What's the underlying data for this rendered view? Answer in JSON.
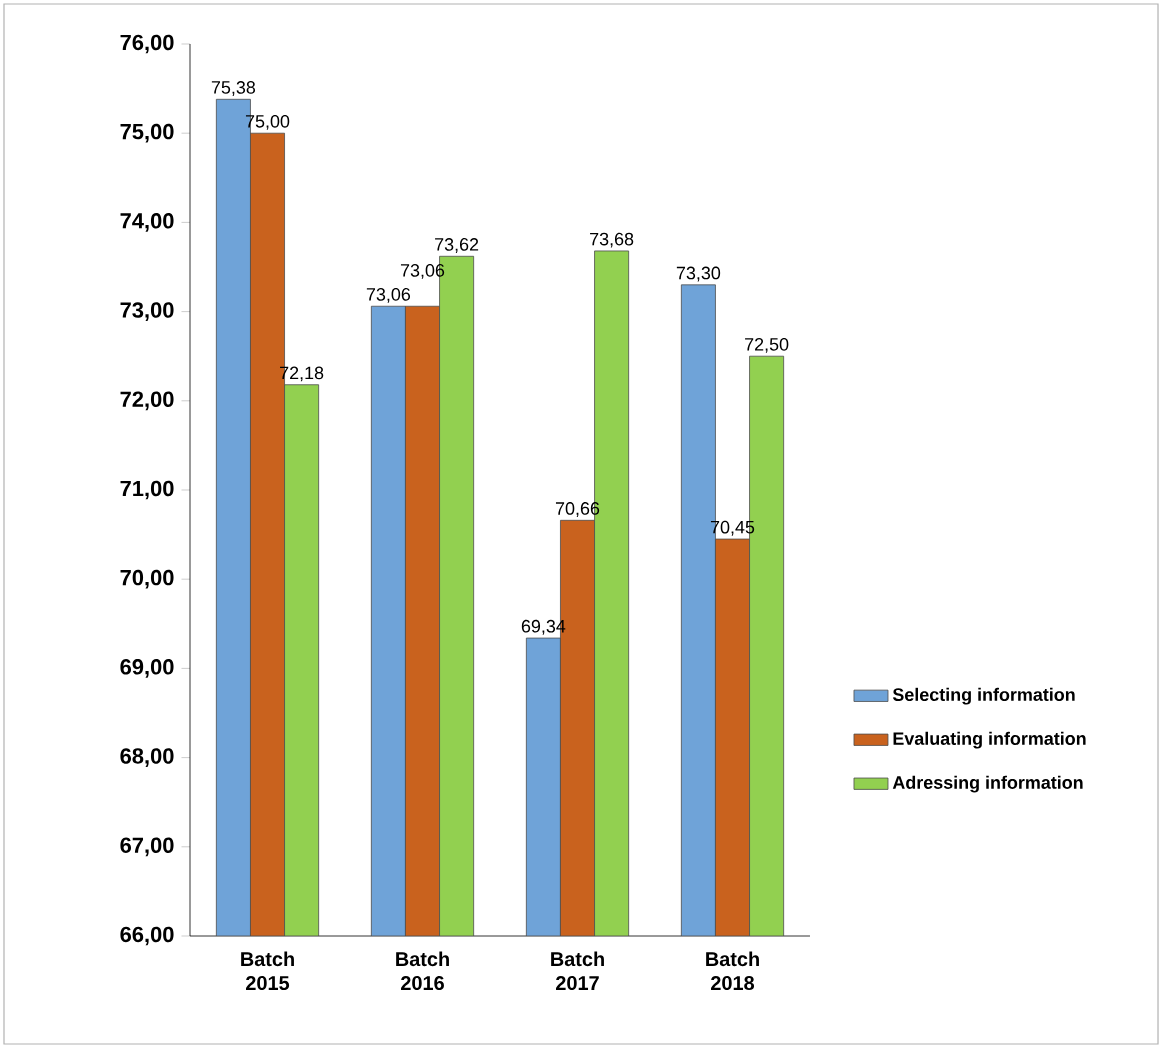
{
  "chart_data": {
    "type": "bar",
    "categories": [
      "Batch 2015",
      "Batch 2016",
      "Batch 2017",
      "Batch 2018"
    ],
    "series": [
      {
        "name": "Selecting information",
        "color": "#6fa3d8",
        "values": [
          75.38,
          73.06,
          69.34,
          73.3
        ],
        "value_labels": [
          "75,38",
          "73,06",
          "69,34",
          "73,30"
        ]
      },
      {
        "name": "Evaluating information",
        "color": "#c9621e",
        "values": [
          75.0,
          73.06,
          70.66,
          70.45
        ],
        "value_labels": [
          "75,00",
          "73,06",
          "70,66",
          "70,45"
        ]
      },
      {
        "name": "Adressing information",
        "color": "#92d050",
        "values": [
          72.18,
          73.62,
          73.68,
          72.5
        ],
        "value_labels": [
          "72,18",
          "73,62",
          "73,68",
          "72,50"
        ]
      }
    ],
    "ylim": [
      66,
      76
    ],
    "yticks": [
      {
        "value": 66,
        "label": "66,00"
      },
      {
        "value": 67,
        "label": "67,00"
      },
      {
        "value": 68,
        "label": "68,00"
      },
      {
        "value": 69,
        "label": "69,00"
      },
      {
        "value": 70,
        "label": "70,00"
      },
      {
        "value": 71,
        "label": "71,00"
      },
      {
        "value": 72,
        "label": "72,00"
      },
      {
        "value": 73,
        "label": "73,00"
      },
      {
        "value": 74,
        "label": "74,00"
      },
      {
        "value": 75,
        "label": "75,00"
      },
      {
        "value": 76,
        "label": "76,00"
      }
    ],
    "legend": "right",
    "grid": false
  }
}
